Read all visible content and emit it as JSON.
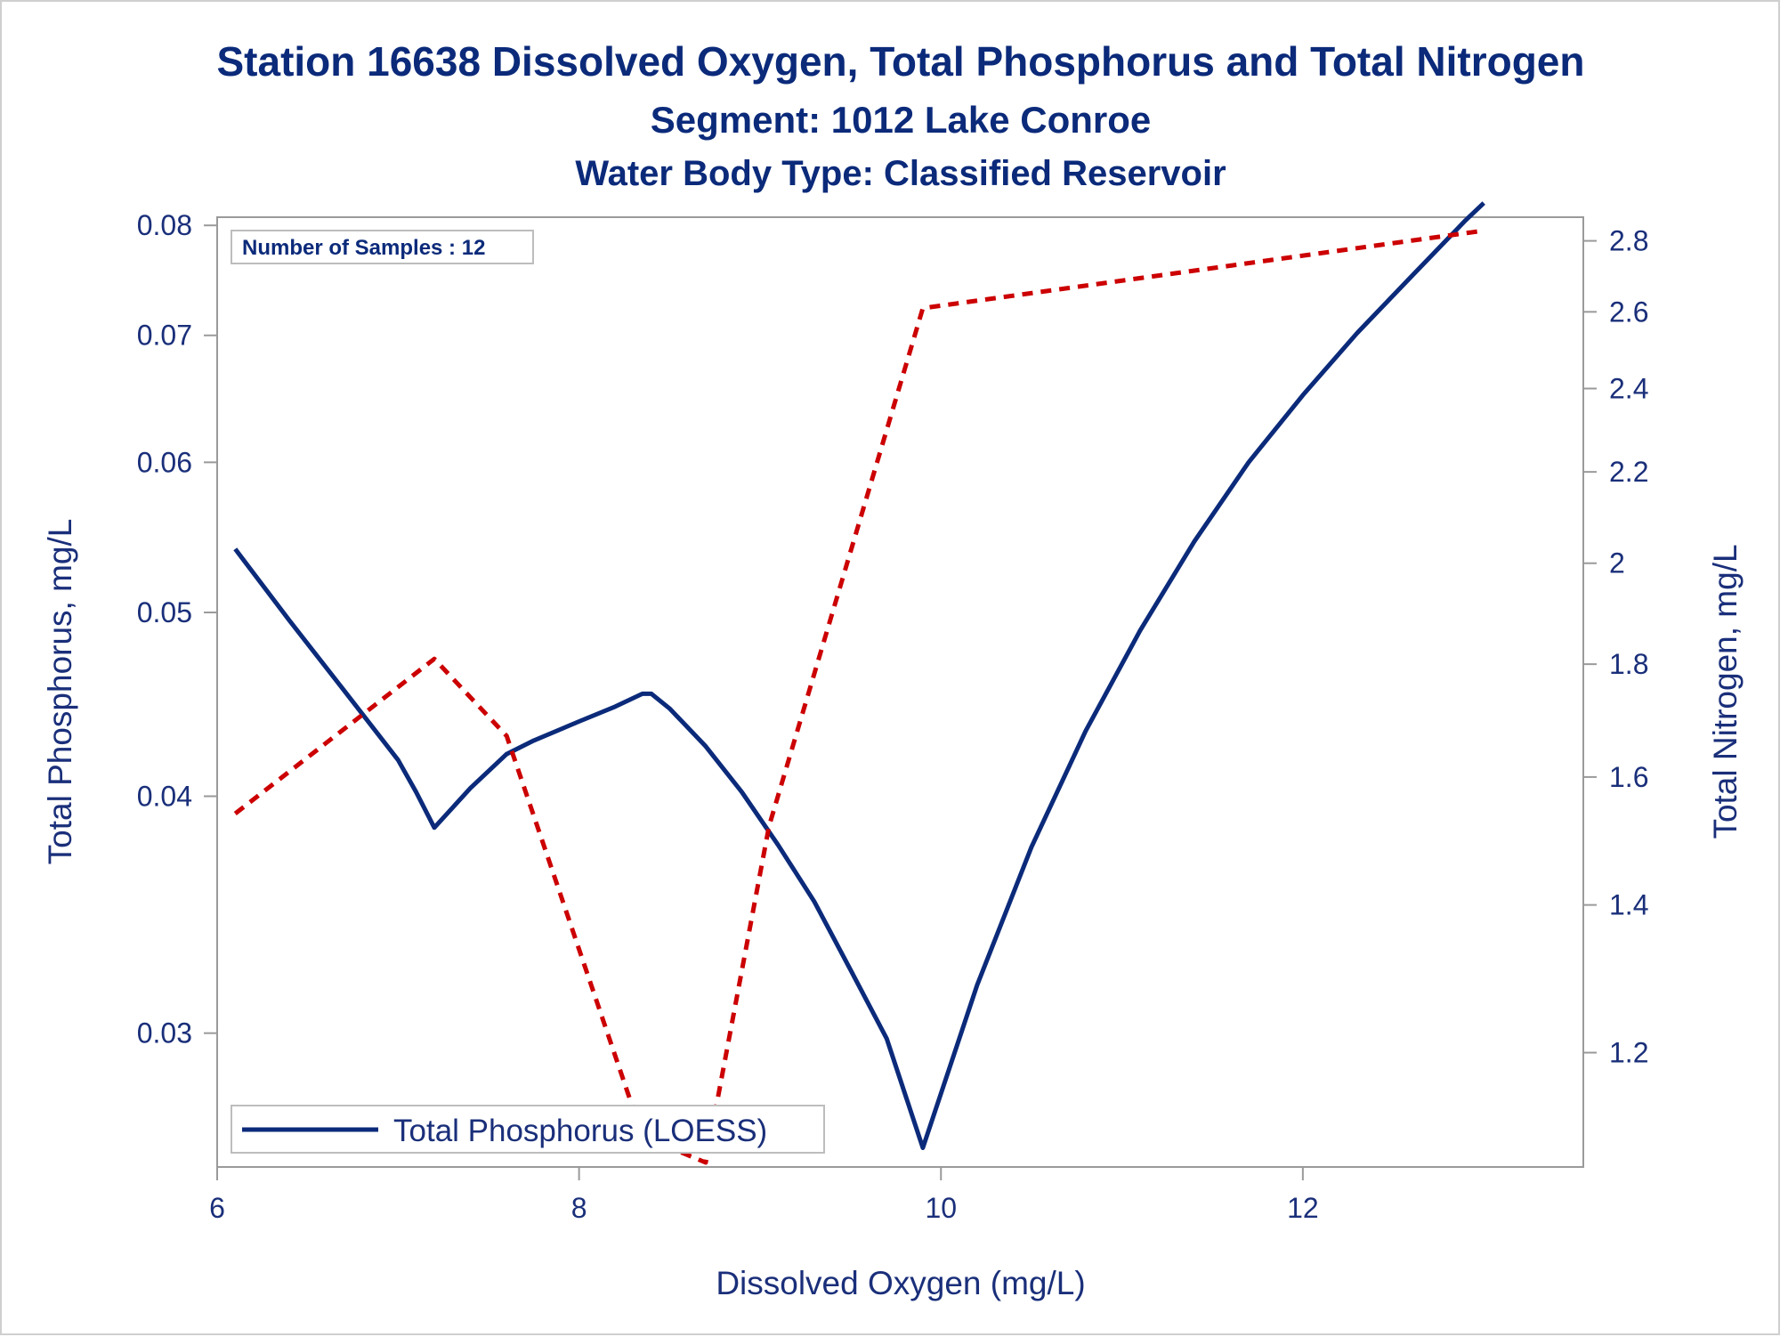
{
  "titles": {
    "line1": "Station 16638  Dissolved Oxygen, Total Phosphorus and Total Nitrogen",
    "line2": "Segment: 1012  Lake Conroe",
    "line3": "Water Body Type: Classified Reservoir"
  },
  "inset": {
    "samples_label": "Number of Samples : 12"
  },
  "colors": {
    "title": "#0b2a7a",
    "axis_text": "#1a2f7a",
    "frame": "#9a9a9a",
    "phosphorus_line": "#0b2a7a",
    "nitrogen_line": "#cc0000"
  },
  "chart_data": {
    "type": "line",
    "xlabel": "Dissolved Oxygen (mg/L)",
    "ylabel": "Total Phosphorus, mg/L",
    "y2label": "Total Nitrogen, mg/L",
    "xlim": [
      6,
      13.55
    ],
    "xticks": [
      6,
      8,
      10,
      12
    ],
    "x_tick_labels": [
      "6",
      "8",
      "10",
      "12"
    ],
    "y_scale": "log",
    "ylim": [
      0.0255,
      0.0808
    ],
    "yticks": [
      0.03,
      0.04,
      0.05,
      0.06,
      0.07,
      0.08
    ],
    "y_tick_labels": [
      "0.03",
      "0.04",
      "0.05",
      "0.06",
      "0.07",
      "0.08"
    ],
    "y2_scale": "log",
    "y2lim": [
      1.065,
      2.87
    ],
    "y2ticks": [
      1.2,
      1.4,
      1.6,
      1.8,
      2.0,
      2.2,
      2.4,
      2.6,
      2.8
    ],
    "y2_tick_labels": [
      "1.2",
      "1.4",
      "1.6",
      "1.8",
      "2",
      "2.2",
      "2.4",
      "2.6",
      "2.8"
    ],
    "legend": {
      "placement": "bottom-left",
      "entries": [
        "Total Phosphorus (LOESS)"
      ]
    },
    "grid": false,
    "series": [
      {
        "name": "Total Phosphorus (LOESS)",
        "axis": "left",
        "style": "solid",
        "x": [
          6.1,
          6.4,
          6.7,
          7.0,
          7.1,
          7.2,
          7.4,
          7.6,
          7.75,
          8.0,
          8.2,
          8.35,
          8.4,
          8.5,
          8.7,
          8.9,
          9.1,
          9.3,
          9.5,
          9.7,
          9.9,
          10.2,
          10.5,
          10.8,
          11.1,
          11.4,
          11.7,
          12.0,
          12.3,
          12.6,
          12.9,
          13.0
        ],
        "y": [
          0.054,
          0.0495,
          0.0455,
          0.0418,
          0.0402,
          0.0385,
          0.0404,
          0.0421,
          0.0428,
          0.0438,
          0.0446,
          0.0453,
          0.0453,
          0.0445,
          0.0425,
          0.0402,
          0.0377,
          0.0352,
          0.0324,
          0.0298,
          0.0261,
          0.0318,
          0.0376,
          0.0433,
          0.0489,
          0.0545,
          0.06,
          0.0651,
          0.0702,
          0.0752,
          0.0805,
          0.0822
        ]
      },
      {
        "name": "",
        "axis": "right",
        "style": "dashed",
        "x": [
          6.1,
          7.2,
          7.6,
          8.35,
          8.7,
          9.05,
          9.9,
          13.0
        ],
        "y": [
          1.54,
          1.81,
          1.67,
          1.1,
          1.07,
          1.52,
          2.61,
          2.83
        ]
      }
    ]
  }
}
